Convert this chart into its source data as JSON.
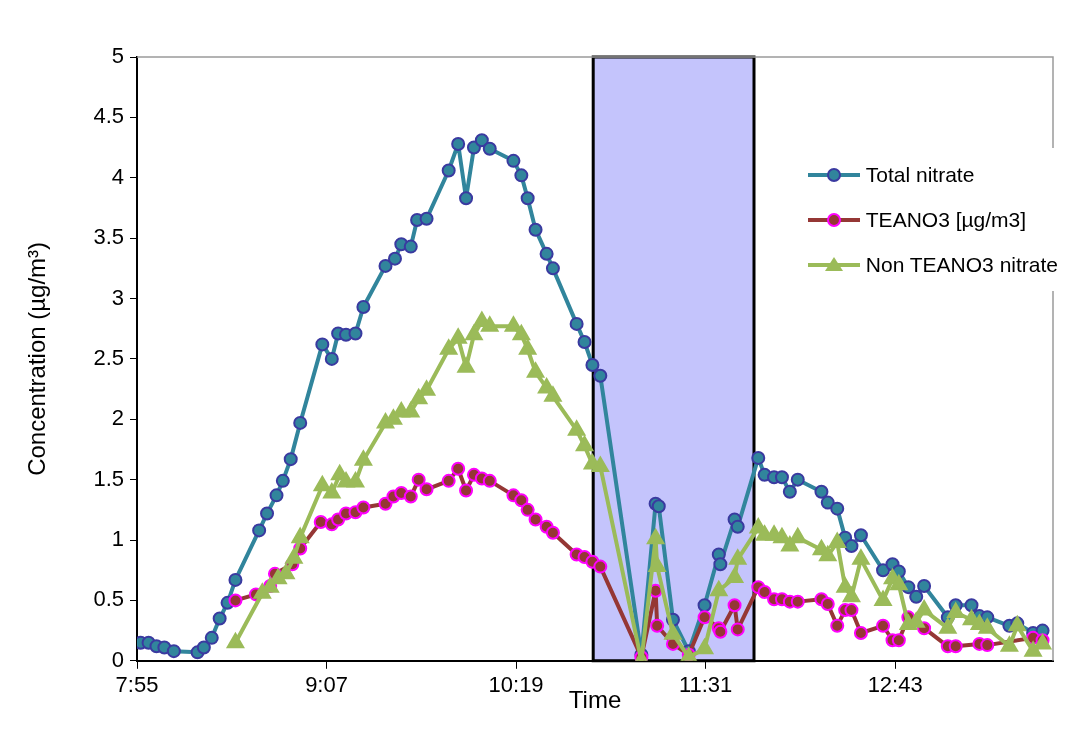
{
  "chart_data": {
    "type": "line",
    "xlabel": "Time",
    "ylabel": "Concentration (µg/m³)",
    "xlim": [
      7.9167,
      13.716
    ],
    "xticks": [
      {
        "value": 7.9167,
        "label": "7:55"
      },
      {
        "value": 9.1167,
        "label": "9:07"
      },
      {
        "value": 10.3167,
        "label": "10:19"
      },
      {
        "value": 11.5167,
        "label": "11:31"
      },
      {
        "value": 12.7167,
        "label": "12:43"
      }
    ],
    "ylim": [
      0,
      5
    ],
    "yticks": [
      0,
      0.5,
      1,
      1.5,
      2,
      2.5,
      3,
      3.5,
      4,
      4.5,
      5
    ],
    "grid": false,
    "legend": "top right",
    "line_style": "solid",
    "bands": [
      {
        "axis": "x",
        "from": 10.805,
        "to": 11.823,
        "color": "#c4c4fc"
      }
    ],
    "series": [
      {
        "name": "Total nitrate",
        "color": "#31859c",
        "marker": "circle",
        "x": [
          7.94,
          7.99,
          8.04,
          8.09,
          8.15,
          8.3,
          8.34,
          8.39,
          8.44,
          8.49,
          8.54,
          8.69,
          8.74,
          8.8,
          8.84,
          8.89,
          8.95,
          9.09,
          9.15,
          9.19,
          9.24,
          9.3,
          9.35,
          9.49,
          9.55,
          9.59,
          9.65,
          9.69,
          9.75,
          9.89,
          9.95,
          10.0,
          10.05,
          10.1,
          10.15,
          10.3,
          10.35,
          10.39,
          10.44,
          10.51,
          10.55,
          10.7,
          10.75,
          10.8,
          10.85,
          11.11,
          11.2,
          11.22,
          11.31,
          11.41,
          11.51,
          11.6,
          11.61,
          11.7,
          11.72,
          11.85,
          11.89,
          11.95,
          12.0,
          12.05,
          12.1,
          12.25,
          12.29,
          12.35,
          12.4,
          12.44,
          12.5,
          12.64,
          12.7,
          12.74,
          12.8,
          12.85,
          12.9,
          13.05,
          13.1,
          13.2,
          13.25,
          13.3,
          13.44,
          13.49,
          13.59,
          13.65
        ],
        "values": [
          0.15,
          0.15,
          0.12,
          0.11,
          0.08,
          0.07,
          0.11,
          0.19,
          0.35,
          0.48,
          0.67,
          1.08,
          1.22,
          1.37,
          1.49,
          1.67,
          1.97,
          2.62,
          2.5,
          2.71,
          2.7,
          2.71,
          2.93,
          3.27,
          3.33,
          3.45,
          3.43,
          3.65,
          3.66,
          4.06,
          4.28,
          3.83,
          4.25,
          4.31,
          4.24,
          4.14,
          4.02,
          3.83,
          3.57,
          3.37,
          3.25,
          2.79,
          2.64,
          2.45,
          2.36,
          0.05,
          1.3,
          1.28,
          0.34,
          0.08,
          0.46,
          0.88,
          0.8,
          1.17,
          1.11,
          1.68,
          1.54,
          1.52,
          1.52,
          1.4,
          1.5,
          1.4,
          1.31,
          1.26,
          1.02,
          0.95,
          1.04,
          0.75,
          0.8,
          0.74,
          0.61,
          0.53,
          0.62,
          0.36,
          0.46,
          0.46,
          0.37,
          0.36,
          0.29,
          0.31,
          0.23,
          0.25
        ]
      },
      {
        "name": "TEANO3 [µg/m3]",
        "color": "#953735",
        "marker": "circle",
        "x": [
          8.54,
          8.67,
          8.76,
          8.79,
          8.9,
          8.95,
          9.08,
          9.15,
          9.19,
          9.24,
          9.3,
          9.35,
          9.49,
          9.54,
          9.59,
          9.65,
          9.7,
          9.75,
          9.89,
          9.95,
          10.0,
          10.05,
          10.1,
          10.15,
          10.3,
          10.35,
          10.39,
          10.44,
          10.51,
          10.55,
          10.7,
          10.75,
          10.8,
          10.85,
          11.11,
          11.2,
          11.21,
          11.31,
          11.41,
          11.51,
          11.6,
          11.61,
          11.7,
          11.72,
          11.85,
          11.89,
          11.95,
          12.0,
          12.05,
          12.1,
          12.25,
          12.29,
          12.35,
          12.4,
          12.44,
          12.5,
          12.64,
          12.7,
          12.74,
          12.8,
          12.9,
          13.05,
          13.1,
          13.25,
          13.3,
          13.59,
          13.65
        ],
        "values": [
          0.5,
          0.55,
          0.62,
          0.72,
          0.8,
          0.93,
          1.15,
          1.13,
          1.17,
          1.22,
          1.23,
          1.27,
          1.3,
          1.36,
          1.39,
          1.36,
          1.5,
          1.42,
          1.49,
          1.59,
          1.41,
          1.54,
          1.51,
          1.49,
          1.37,
          1.33,
          1.25,
          1.17,
          1.11,
          1.06,
          0.88,
          0.86,
          0.82,
          0.78,
          0.03,
          0.58,
          0.29,
          0.14,
          0.05,
          0.36,
          0.27,
          0.24,
          0.46,
          0.26,
          0.61,
          0.57,
          0.51,
          0.51,
          0.49,
          0.49,
          0.51,
          0.47,
          0.29,
          0.42,
          0.42,
          0.23,
          0.29,
          0.17,
          0.17,
          0.36,
          0.27,
          0.12,
          0.12,
          0.14,
          0.13,
          0.19,
          0.17
        ]
      },
      {
        "name": "Non TEANO3 nitrate",
        "color": "#9bbb59",
        "marker": "triangle",
        "x": [
          8.54,
          8.71,
          8.76,
          8.81,
          8.86,
          8.91,
          8.95,
          9.09,
          9.15,
          9.2,
          9.24,
          9.3,
          9.35,
          9.49,
          9.54,
          9.59,
          9.65,
          9.7,
          9.75,
          9.89,
          9.95,
          10.0,
          10.05,
          10.1,
          10.15,
          10.3,
          10.35,
          10.39,
          10.44,
          10.51,
          10.55,
          10.7,
          10.75,
          10.8,
          10.85,
          11.11,
          11.2,
          11.21,
          11.31,
          11.41,
          11.51,
          11.6,
          11.7,
          11.72,
          11.85,
          11.89,
          11.95,
          12.0,
          12.05,
          12.1,
          12.25,
          12.29,
          12.35,
          12.4,
          12.44,
          12.5,
          12.64,
          12.7,
          12.74,
          12.8,
          12.85,
          12.9,
          13.05,
          13.1,
          13.2,
          13.25,
          13.3,
          13.44,
          13.49,
          13.59,
          13.65
        ],
        "values": [
          0.15,
          0.56,
          0.61,
          0.68,
          0.72,
          0.85,
          1.02,
          1.45,
          1.39,
          1.54,
          1.48,
          1.48,
          1.66,
          1.97,
          2.0,
          2.06,
          2.06,
          2.17,
          2.24,
          2.58,
          2.67,
          2.43,
          2.7,
          2.81,
          2.77,
          2.77,
          2.7,
          2.58,
          2.39,
          2.26,
          2.19,
          1.91,
          1.78,
          1.63,
          1.61,
          0,
          1.01,
          0.78,
          0.22,
          0.03,
          0.1,
          0.58,
          0.69,
          0.84,
          1.1,
          1.04,
          1.04,
          1.02,
          0.95,
          1.02,
          0.92,
          0.87,
          0.98,
          0.61,
          0.53,
          0.84,
          0.5,
          0.68,
          0.63,
          0.3,
          0.32,
          0.42,
          0.27,
          0.4,
          0.34,
          0.3,
          0.27,
          0.12,
          0.29,
          0.08,
          0.14
        ]
      }
    ]
  }
}
